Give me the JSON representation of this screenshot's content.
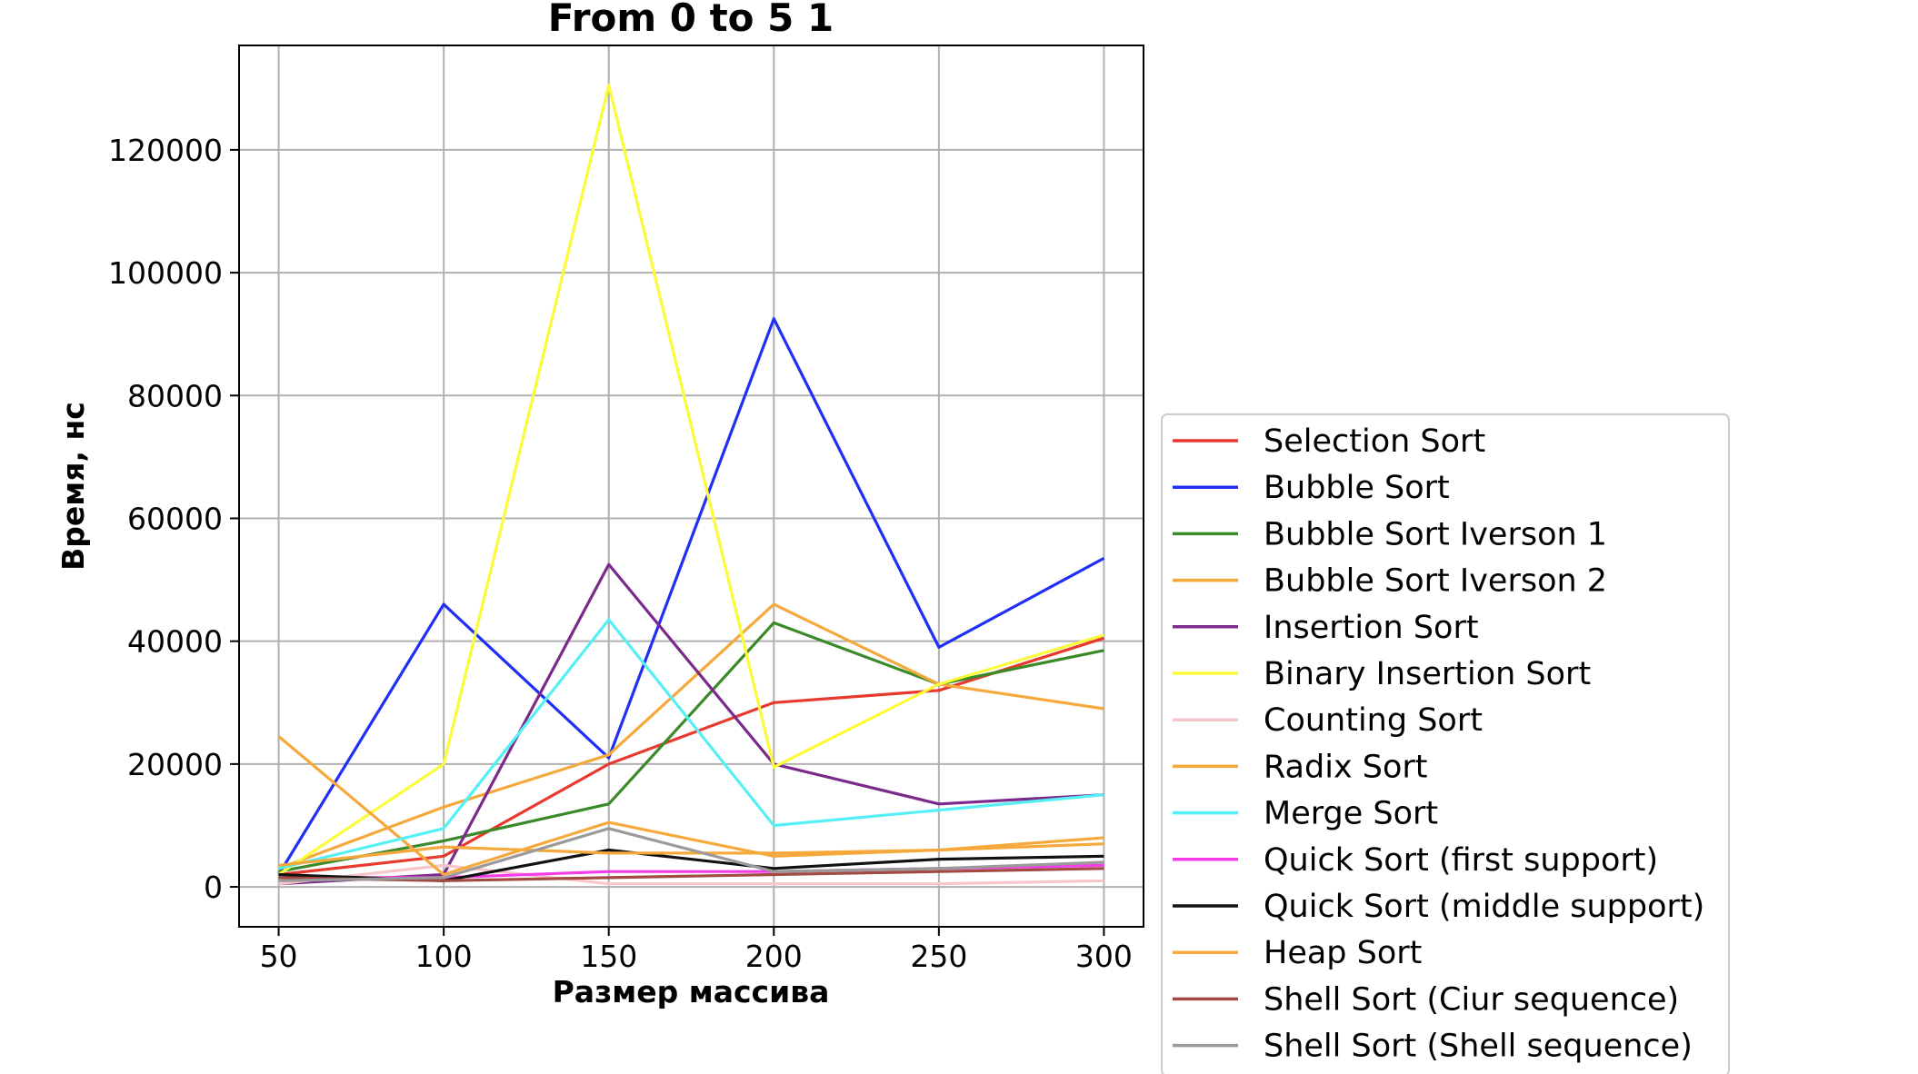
{
  "chart_data": {
    "type": "line",
    "title": "From 0 to 5 1",
    "xlabel": "Размер массива",
    "ylabel": "Время, нс",
    "x": [
      50,
      100,
      150,
      200,
      250,
      300
    ],
    "xlim": [
      38,
      312
    ],
    "ylim": [
      -6500,
      137000
    ],
    "xticks": [
      50,
      100,
      150,
      200,
      250,
      300
    ],
    "yticks": [
      0,
      20000,
      40000,
      60000,
      80000,
      100000,
      120000
    ],
    "grid": true,
    "legend_position": "lower-right-outside",
    "series": [
      {
        "name": "Selection Sort",
        "color": "#e8392e",
        "values": [
          2000,
          5000,
          20000,
          30000,
          32000,
          40500
        ]
      },
      {
        "name": "Bubble Sort",
        "color": "#1f2ff5",
        "values": [
          2000,
          46000,
          21000,
          92500,
          39000,
          53500
        ]
      },
      {
        "name": "Bubble Sort Iverson 1",
        "color": "#3a8a2a",
        "values": [
          2500,
          7500,
          13500,
          43000,
          33000,
          38500
        ]
      },
      {
        "name": "Bubble Sort Iverson 2",
        "color": "#f5a93c",
        "values": [
          3000,
          13000,
          21500,
          46000,
          33000,
          29000
        ]
      },
      {
        "name": "Insertion Sort",
        "color": "#7b2a8c",
        "values": [
          500,
          2000,
          52500,
          20000,
          13500,
          15000
        ]
      },
      {
        "name": "Binary Insertion Sort",
        "color": "#fbfb3c",
        "values": [
          2000,
          20000,
          130500,
          19500,
          33000,
          41000
        ]
      },
      {
        "name": "Counting Sort",
        "color": "#f7c6cc",
        "values": [
          500,
          3500,
          500,
          500,
          500,
          1000
        ]
      },
      {
        "name": "Radix Sort",
        "color": "#f5a93c",
        "values": [
          24500,
          2000,
          10500,
          5000,
          6000,
          7000
        ]
      },
      {
        "name": "Merge Sort",
        "color": "#55f0f5",
        "values": [
          3000,
          9500,
          43500,
          10000,
          12500,
          15000
        ]
      },
      {
        "name": "Quick Sort (first support)",
        "color": "#f53ce8",
        "values": [
          1500,
          1500,
          2500,
          2500,
          3000,
          3500
        ]
      },
      {
        "name": "Quick Sort (middle support)",
        "color": "#111111",
        "values": [
          2000,
          1000,
          6000,
          3000,
          4500,
          5000
        ]
      },
      {
        "name": "Heap Sort",
        "color": "#f5a93c",
        "values": [
          3500,
          6500,
          5500,
          5500,
          6000,
          8000
        ]
      },
      {
        "name": "Shell Sort (Ciur sequence)",
        "color": "#a04a42",
        "values": [
          1500,
          1000,
          1500,
          2000,
          2500,
          3000
        ]
      },
      {
        "name": "Shell Sort (Shell sequence)",
        "color": "#9a9a9a",
        "values": [
          1000,
          1500,
          9500,
          2500,
          3000,
          4000
        ]
      }
    ]
  }
}
